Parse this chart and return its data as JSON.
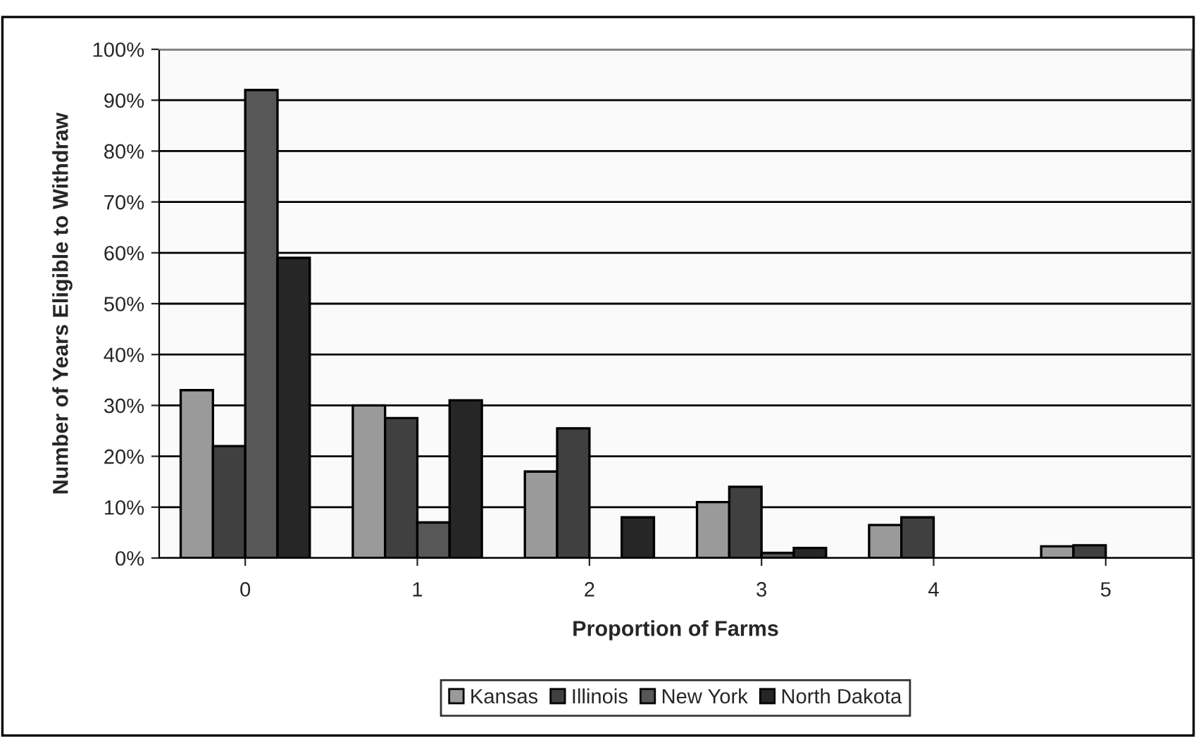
{
  "chart_data": {
    "type": "bar",
    "xlabel": "Proportion of Farms",
    "ylabel": "Number of Years Eligible to Withdraw",
    "categories": [
      "0",
      "1",
      "2",
      "3",
      "4",
      "5"
    ],
    "series": [
      {
        "name": "Kansas",
        "color": "#9a9a9a",
        "values": [
          33,
          30,
          17,
          11,
          6.5,
          2.3
        ]
      },
      {
        "name": "Illinois",
        "color": "#404040",
        "values": [
          22,
          27.5,
          25.5,
          14,
          8,
          2.5
        ]
      },
      {
        "name": "New York",
        "color": "#575757",
        "values": [
          92,
          7,
          null,
          1,
          null,
          null
        ]
      },
      {
        "name": "North Dakota",
        "color": "#262626",
        "values": [
          59,
          31,
          8,
          2,
          null,
          null
        ]
      }
    ],
    "ylim": [
      0,
      100
    ],
    "yticks": [
      {
        "value": 0,
        "label": "0%"
      },
      {
        "value": 10,
        "label": "10%"
      },
      {
        "value": 20,
        "label": "20%"
      },
      {
        "value": 30,
        "label": "30%"
      },
      {
        "value": 40,
        "label": "40%"
      },
      {
        "value": 50,
        "label": "50%"
      },
      {
        "value": 60,
        "label": "60%"
      },
      {
        "value": 70,
        "label": "70%"
      },
      {
        "value": 80,
        "label": "80%"
      },
      {
        "value": 90,
        "label": "90%"
      },
      {
        "value": 100,
        "label": "100%"
      }
    ],
    "grid": "y",
    "legend": "bottom"
  }
}
